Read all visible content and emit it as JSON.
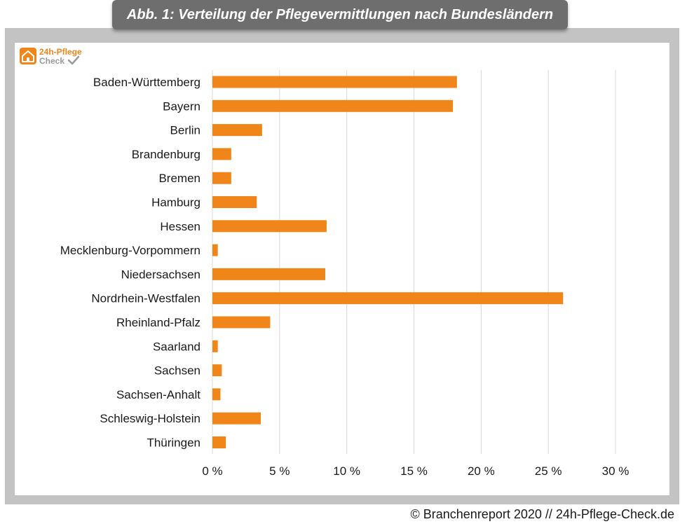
{
  "header": {
    "title": "Abb. 1: Verteilung der Pflegevermittlungen nach Bundesländern"
  },
  "logo": {
    "line1": "24h-Pflege",
    "line2": "Check",
    "icon": "house-icon"
  },
  "footer": {
    "text": "© Branchenreport 2020 // 24h-Pflege-Check.de"
  },
  "colors": {
    "bar": "#f08519",
    "grid": "#d9d9d9",
    "frame": "#c3c3c3",
    "title_bg": "#6e6e6e"
  },
  "chart_data": {
    "type": "bar",
    "orientation": "horizontal",
    "categories": [
      "Baden-Württemberg",
      "Bayern",
      "Berlin",
      "Brandenburg",
      "Bremen",
      "Hamburg",
      "Hessen",
      "Mecklenburg-Vorpommern",
      "Niedersachsen",
      "Nordrhein-Westfalen",
      "Rheinland-Pfalz",
      "Saarland",
      "Sachsen",
      "Sachsen-Anhalt",
      "Schleswig-Holstein",
      "Thüringen"
    ],
    "values": [
      18.2,
      17.9,
      3.7,
      1.4,
      1.4,
      3.3,
      8.5,
      0.4,
      8.4,
      26.1,
      4.3,
      0.4,
      0.7,
      0.6,
      3.6,
      1.0
    ],
    "xlim": [
      0,
      30
    ],
    "xticks": [
      0,
      5,
      10,
      15,
      20,
      25,
      30
    ],
    "xtick_labels": [
      "0 %",
      "5 %",
      "10 %",
      "15 %",
      "20 %",
      "25 %",
      "30 %"
    ],
    "grid": true,
    "legend": "none"
  }
}
